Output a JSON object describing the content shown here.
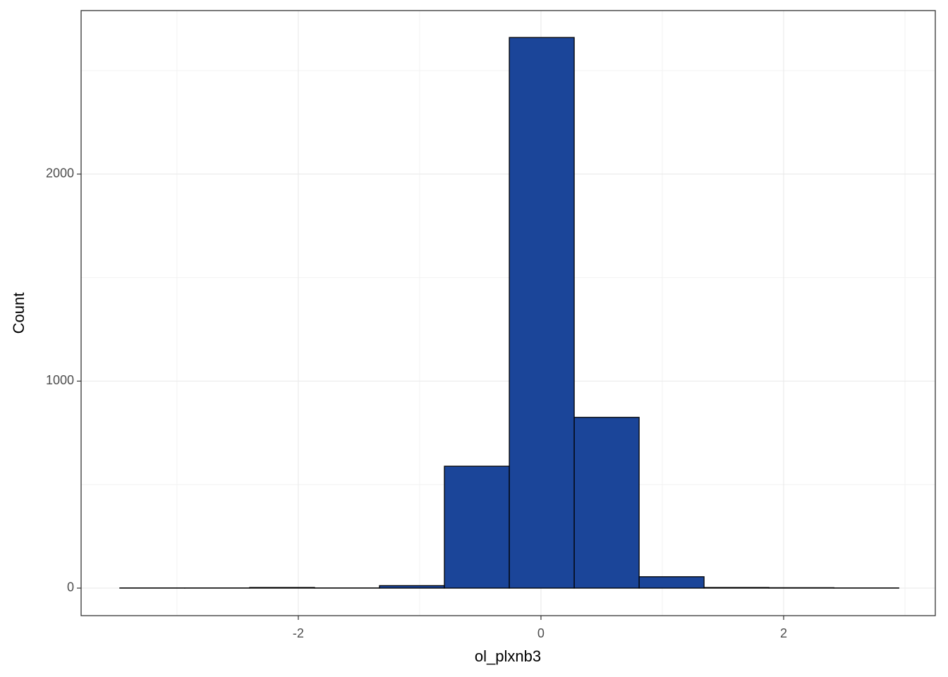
{
  "chart_data": {
    "type": "histogram",
    "x_label": "ol_plxnb3",
    "y_label": "Count",
    "bins": [
      -3.471,
      -2.936,
      -2.401,
      -1.866,
      -1.331,
      -0.796,
      -0.261,
      0.274,
      0.809,
      1.344,
      1.879,
      2.414,
      2.949
    ],
    "values": [
      1,
      1,
      3,
      1,
      12,
      589,
      2660,
      825,
      55,
      3,
      2,
      1
    ],
    "color": "#1b4599",
    "edge_color": "#000000",
    "xlim": [
      -3.79,
      3.25
    ],
    "ylim": [
      -133,
      2790
    ],
    "xticks": [
      -2,
      0,
      2
    ],
    "yticks": [
      0,
      1000,
      2000
    ],
    "xminor": [
      -3,
      -1,
      1,
      3
    ],
    "yminor": [
      500,
      1500,
      2500
    ],
    "grid": true
  }
}
